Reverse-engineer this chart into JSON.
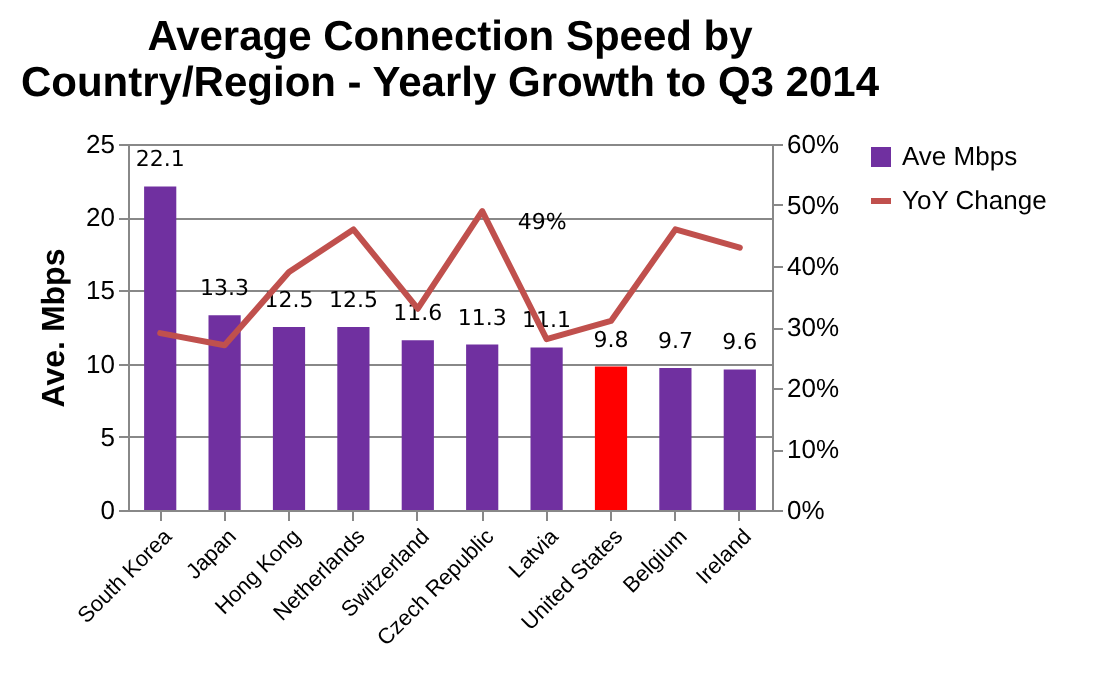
{
  "chart_data": {
    "type": "bar",
    "title": "Average Connection Speed by Country/Region - Yearly Growth to Q3 2014",
    "ylabel": "Ave. Mbps",
    "categories": [
      "South Korea",
      "Japan",
      "Hong Kong",
      "Netherlands",
      "Switzerland",
      "Czech Republic",
      "Latvia",
      "United States",
      "Belgium",
      "Ireland"
    ],
    "series": [
      {
        "name": "Ave Mbps",
        "color": "#7030a0",
        "colors": [
          "#7030a0",
          "#7030a0",
          "#7030a0",
          "#7030a0",
          "#7030a0",
          "#7030a0",
          "#7030a0",
          "#ff0000",
          "#7030a0",
          "#7030a0"
        ],
        "values": [
          22.1,
          13.3,
          12.5,
          12.5,
          11.6,
          11.3,
          11.1,
          9.8,
          9.7,
          9.6
        ]
      },
      {
        "name": "YoY Change",
        "type": "line",
        "axis": "y2",
        "color": "#c0504d",
        "values": [
          29,
          27,
          39,
          46,
          33,
          49,
          28,
          31,
          46,
          43
        ],
        "value_labels": [
          null,
          null,
          null,
          null,
          null,
          "49%",
          null,
          null,
          null,
          null
        ]
      }
    ],
    "data_labels": true,
    "ylim": [
      0,
      25
    ],
    "yticks": [
      0,
      5,
      10,
      15,
      20,
      25
    ],
    "y2lim": [
      0,
      60
    ],
    "y2ticks": [
      {
        "value": 0,
        "label": "0%"
      },
      {
        "value": 10,
        "label": "10%"
      },
      {
        "value": 20,
        "label": "20%"
      },
      {
        "value": 30,
        "label": "30%"
      },
      {
        "value": 40,
        "label": "40%"
      },
      {
        "value": 50,
        "label": "50%"
      },
      {
        "value": 60,
        "label": "60%"
      }
    ],
    "grid": "y",
    "legend": "right"
  }
}
